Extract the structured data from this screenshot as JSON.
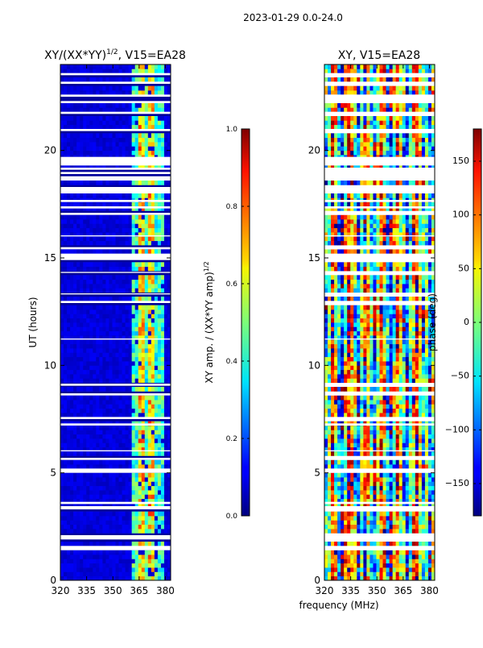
{
  "figure": {
    "suptitle": "2023-01-29 0.0-24.0",
    "shared_xlabel": "frequency (MHz)"
  },
  "chart_data": [
    {
      "type": "heatmap",
      "title_main": "XY/(XX*YY)",
      "title_exp": "1/2",
      "title_suffix": ", V15=EA28",
      "xlabel": "frequency (MHz)",
      "ylabel": "UT (hours)",
      "xlim": [
        320,
        383
      ],
      "ylim": [
        0,
        24
      ],
      "xticks": [
        "320",
        "335",
        "350",
        "365",
        "380"
      ],
      "yticks": [
        "0",
        "5",
        "10",
        "15",
        "20"
      ],
      "colorbar": {
        "label_main": "XY amp. / (XX*YY amp)",
        "label_exp": "1/2",
        "ticks": [
          "0.0",
          "0.2",
          "0.4",
          "0.6",
          "0.8",
          "1.0"
        ],
        "range": [
          0.0,
          1.0
        ]
      }
    },
    {
      "type": "heatmap",
      "title": "XY, V15=EA28",
      "xlabel": "frequency (MHz)",
      "xlim": [
        320,
        383
      ],
      "ylim": [
        0,
        24
      ],
      "xticks": [
        "320",
        "335",
        "350",
        "365",
        "380"
      ],
      "yticks": [
        "0",
        "5",
        "10",
        "15",
        "20"
      ],
      "colorbar": {
        "label": "phase (deg)",
        "ticks": [
          "−150",
          "−100",
          "−50",
          "0",
          "50",
          "100",
          "150"
        ],
        "range": [
          -180,
          180
        ]
      }
    }
  ]
}
